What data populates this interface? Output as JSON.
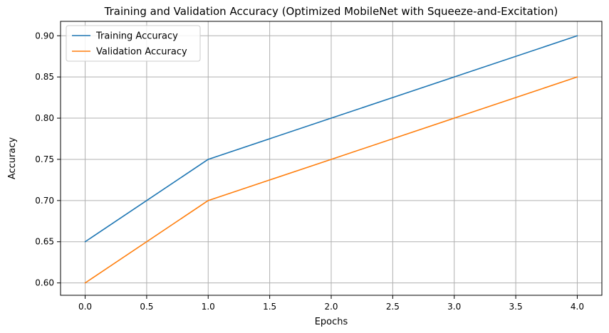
{
  "chart_data": {
    "type": "line",
    "title": "Training and Validation Accuracy (Optimized MobileNet with Squeeze-and-Excitation)",
    "xlabel": "Epochs",
    "ylabel": "Accuracy",
    "xlim": [
      -0.2,
      4.2
    ],
    "ylim": [
      0.585,
      0.9175
    ],
    "xticks": [
      0.0,
      0.5,
      1.0,
      1.5,
      2.0,
      2.5,
      3.0,
      3.5,
      4.0
    ],
    "xtick_labels": [
      "0.0",
      "0.5",
      "1.0",
      "1.5",
      "2.0",
      "2.5",
      "3.0",
      "3.5",
      "4.0"
    ],
    "yticks": [
      0.6,
      0.65,
      0.7,
      0.75,
      0.8,
      0.85,
      0.9
    ],
    "ytick_labels": [
      "0.60",
      "0.65",
      "0.70",
      "0.75",
      "0.80",
      "0.85",
      "0.90"
    ],
    "grid": true,
    "legend_position": "top-left",
    "x": [
      0,
      1,
      2,
      3,
      4
    ],
    "series": [
      {
        "name": "Training Accuracy",
        "color": "#1f77b4",
        "values": [
          0.65,
          0.75,
          0.8,
          0.85,
          0.9
        ]
      },
      {
        "name": "Validation Accuracy",
        "color": "#ff7f0e",
        "values": [
          0.6,
          0.7,
          0.75,
          0.8,
          0.85
        ]
      }
    ]
  }
}
